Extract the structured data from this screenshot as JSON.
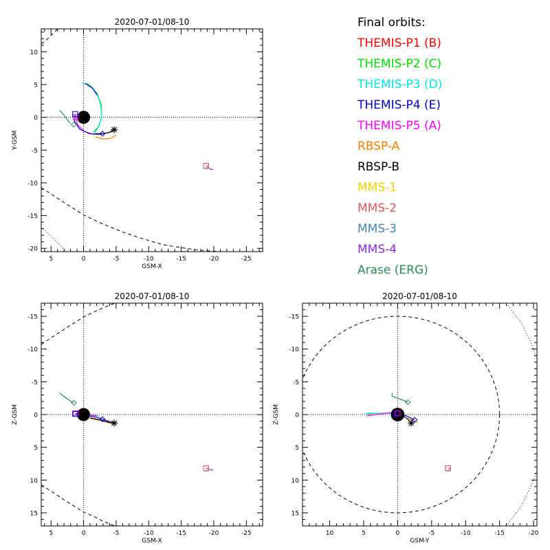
{
  "legend": {
    "title": "Final orbits:",
    "items": [
      {
        "label": "THEMIS-P1 (B)",
        "color": "#ff0000"
      },
      {
        "label": "THEMIS-P2 (C)",
        "color": "#00dd00"
      },
      {
        "label": "THEMIS-P3 (D)",
        "color": "#00e5e5"
      },
      {
        "label": "THEMIS-P4 (E)",
        "color": "#0000cc"
      },
      {
        "label": "THEMIS-P5 (A)",
        "color": "#ff00ff"
      },
      {
        "label": "RBSP-A",
        "color": "#ff8000"
      },
      {
        "label": "RBSP-B",
        "color": "#000000"
      },
      {
        "label": "MMS-1",
        "color": "#ffd000"
      },
      {
        "label": "MMS-2",
        "color": "#e05a5a"
      },
      {
        "label": "MMS-3",
        "color": "#4682b4"
      },
      {
        "label": "MMS-4",
        "color": "#8a2be2"
      },
      {
        "label": "Arase (ERG)",
        "color": "#2e8b57"
      }
    ]
  },
  "chart_data": [
    {
      "type": "line",
      "title": "2020-07-01/08-10",
      "xlabel": "GSM-X",
      "ylabel": "Y-GSM",
      "xlim": [
        6.5,
        -27.5
      ],
      "ylim": [
        13.5,
        -20.5
      ],
      "xticks": [
        5,
        0,
        -5,
        -10,
        -15,
        -20,
        -25
      ],
      "yticks": [
        -20,
        -15,
        -10,
        -5,
        0,
        5,
        10
      ],
      "grid": "zero-lines",
      "earth": {
        "x": 0,
        "y": 0,
        "r": 1
      },
      "boundaries": [
        {
          "style": "dashed",
          "points": [
            [
              6.5,
              -10.7
            ],
            [
              5,
              -11.7
            ],
            [
              3,
              -13.0
            ],
            [
              0,
              -14.9
            ],
            [
              -3,
              -16.3
            ],
            [
              -6,
              -17.5
            ],
            [
              -9,
              -18.5
            ],
            [
              -12,
              -19.4
            ],
            [
              -15,
              -19.9
            ],
            [
              -18,
              -20.3
            ],
            [
              -21,
              -20.5
            ]
          ]
        },
        {
          "style": "dashed",
          "points": [
            [
              6.5,
              11.2
            ],
            [
              5.5,
              12.0
            ],
            [
              4.5,
              13.0
            ],
            [
              4.0,
              13.5
            ]
          ]
        },
        {
          "style": "dotted",
          "points": [
            [
              6.5,
              -16.7
            ],
            [
              4.5,
              -18.6
            ],
            [
              2.6,
              -20.5
            ]
          ]
        }
      ],
      "series": [
        {
          "color": "#00dd00",
          "points": [
            [
              -1.5,
              -2.3
            ],
            [
              -2.3,
              -1.4
            ],
            [
              -2.8,
              0.2
            ],
            [
              -2.7,
              2.0
            ],
            [
              -2.1,
              3.6
            ],
            [
              -1.2,
              4.7
            ],
            [
              -0.5,
              5.2
            ]
          ]
        },
        {
          "color": "#00e5e5",
          "points": [
            [
              -1.7,
              -2.4
            ],
            [
              -2.4,
              -1.3
            ],
            [
              -2.8,
              0.3
            ],
            [
              -2.6,
              2.0
            ],
            [
              -2.1,
              3.5
            ],
            [
              -1.3,
              4.6
            ],
            [
              -0.3,
              5.1
            ],
            [
              0.3,
              5.3
            ]
          ]
        },
        {
          "color": "#ff00ff",
          "points": [
            [
              1.2,
              0
            ],
            [
              0.9,
              -1.2
            ],
            [
              -0.2,
              -2.2
            ],
            [
              -1.6,
              -2.6
            ],
            [
              -2.6,
              -2.5
            ]
          ]
        },
        {
          "color": "#0000cc",
          "points": [
            [
              1.3,
              0.5
            ],
            [
              1.4,
              -0.6
            ],
            [
              0.6,
              -1.8
            ],
            [
              -0.9,
              -2.5
            ],
            [
              -2.5,
              -2.6
            ],
            [
              -3.9,
              -2.3
            ],
            [
              -4.8,
              -1.9
            ]
          ]
        },
        {
          "color": "#0000cc",
          "points": [
            [
              -2.1,
              3.4
            ],
            [
              -1.3,
              4.5
            ],
            [
              -0.2,
              5.2
            ]
          ]
        },
        {
          "color": "#ff8000",
          "points": [
            [
              -1.8,
              -3.0
            ],
            [
              -3.0,
              -3.3
            ],
            [
              -4.2,
              -3.2
            ],
            [
              -5.0,
              -2.7
            ]
          ]
        },
        {
          "color": "#000000",
          "points": [
            [
              -1.8,
              -2.5
            ],
            [
              -3.0,
              -2.5
            ],
            [
              -4.0,
              -2.3
            ],
            [
              -4.7,
              -1.9
            ]
          ]
        },
        {
          "color": "#2e8b57",
          "points": [
            [
              2.0,
              -1.0
            ],
            [
              2.9,
              0.2
            ],
            [
              3.7,
              1.1
            ]
          ]
        },
        {
          "color": "#8a2be2",
          "points": [
            [
              -18.8,
              -7.4
            ],
            [
              -19.5,
              -7.9
            ],
            [
              -19.9,
              -8.0
            ]
          ]
        },
        {
          "color": "#e05a5a",
          "points": [
            [
              -18.9,
              -7.5
            ],
            [
              -19.4,
              -7.8
            ]
          ]
        }
      ],
      "markers": [
        {
          "kind": "square",
          "color": "#ff00ff",
          "x": 1.2,
          "y": 0
        },
        {
          "kind": "square",
          "color": "#0000cc",
          "x": 1.3,
          "y": 0.5
        },
        {
          "kind": "diamond",
          "color": "#0000cc",
          "x": -2.9,
          "y": -2.5
        },
        {
          "kind": "star",
          "color": "#000000",
          "x": -4.7,
          "y": -1.9
        },
        {
          "kind": "diamond",
          "color": "#2e8b57",
          "x": 1.5,
          "y": -1.1
        },
        {
          "kind": "square",
          "color": "#8a2be2",
          "x": -18.8,
          "y": -7.4
        },
        {
          "kind": "square",
          "color": "#4682b4",
          "x": -18.8,
          "y": -7.4
        },
        {
          "kind": "square",
          "color": "#e05a5a",
          "x": -18.8,
          "y": -7.4
        }
      ]
    },
    {
      "type": "line",
      "title": "2020-07-01/08-10",
      "xlabel": "GSM-X",
      "ylabel": "Z-GSM",
      "xlim": [
        6.5,
        -27.5
      ],
      "ylim": [
        -17,
        17
      ],
      "xticks": [
        5,
        0,
        -5,
        -10,
        -15,
        -20,
        -25
      ],
      "yticks": [
        -15,
        -10,
        -5,
        0,
        5,
        10,
        15
      ],
      "grid": "zero-lines",
      "earth": {
        "x": 0,
        "y": 0,
        "r": 1
      },
      "boundaries": [
        {
          "style": "dashed",
          "points": [
            [
              6.5,
              10.7
            ],
            [
              5,
              11.7
            ],
            [
              3,
              13.0
            ],
            [
              0,
              14.9
            ],
            [
              -1.5,
              15.5
            ],
            [
              -3,
              16.3
            ],
            [
              -4.8,
              17.0
            ]
          ]
        },
        {
          "style": "dashed",
          "points": [
            [
              6.5,
              -10.7
            ],
            [
              5,
              -11.7
            ],
            [
              3,
              -13.0
            ],
            [
              0,
              -14.9
            ],
            [
              -3,
              -16.3
            ],
            [
              -4.8,
              -17.0
            ]
          ]
        }
      ],
      "series": [
        {
          "color": "#00dd00",
          "points": [
            [
              1.2,
              -0.2
            ],
            [
              -0.5,
              0
            ],
            [
              -2.0,
              0.2
            ]
          ]
        },
        {
          "color": "#00e5e5",
          "points": [
            [
              1.2,
              -0.2
            ],
            [
              -0.5,
              0
            ],
            [
              -2.3,
              0.2
            ]
          ]
        },
        {
          "color": "#ff00ff",
          "points": [
            [
              1.2,
              -0.2
            ],
            [
              -0.5,
              0
            ],
            [
              -2.0,
              0.2
            ]
          ]
        },
        {
          "color": "#0000cc",
          "points": [
            [
              1.3,
              -0.1
            ],
            [
              0,
              0.1
            ],
            [
              -2.0,
              0.4
            ],
            [
              -3.5,
              0.9
            ],
            [
              -4.7,
              1.3
            ]
          ]
        },
        {
          "color": "#ff8000",
          "points": [
            [
              -1.0,
              0.6
            ],
            [
              -2.5,
              0.9
            ],
            [
              -4.0,
              1.3
            ],
            [
              -5.0,
              1.5
            ]
          ]
        },
        {
          "color": "#000000",
          "points": [
            [
              -1.0,
              0.5
            ],
            [
              -2.5,
              0.8
            ],
            [
              -4.0,
              1.2
            ],
            [
              -4.7,
              1.3
            ]
          ]
        },
        {
          "color": "#2e8b57",
          "points": [
            [
              1.6,
              -1.8
            ],
            [
              2.8,
              -2.6
            ],
            [
              3.7,
              -3.3
            ]
          ]
        },
        {
          "color": "#8a2be2",
          "points": [
            [
              -18.8,
              8.2
            ],
            [
              -19.5,
              8.4
            ],
            [
              -19.9,
              8.5
            ]
          ]
        },
        {
          "color": "#e05a5a",
          "points": [
            [
              -18.9,
              8.2
            ],
            [
              -19.4,
              8.4
            ]
          ]
        }
      ],
      "markers": [
        {
          "kind": "square",
          "color": "#ff00ff",
          "x": 1.2,
          "y": -0.2
        },
        {
          "kind": "square",
          "color": "#0000cc",
          "x": 1.3,
          "y": -0.1
        },
        {
          "kind": "diamond",
          "color": "#0000cc",
          "x": -2.9,
          "y": 0.7
        },
        {
          "kind": "star",
          "color": "#000000",
          "x": -4.7,
          "y": 1.3
        },
        {
          "kind": "diamond",
          "color": "#2e8b57",
          "x": 1.5,
          "y": -1.8
        },
        {
          "kind": "square",
          "color": "#8a2be2",
          "x": -18.8,
          "y": 8.2
        },
        {
          "kind": "square",
          "color": "#4682b4",
          "x": -18.8,
          "y": 8.2
        },
        {
          "kind": "square",
          "color": "#e05a5a",
          "x": -18.8,
          "y": 8.2
        }
      ]
    },
    {
      "type": "line",
      "title": "2020-07-01/08-10",
      "xlabel": "GSM-Y",
      "ylabel": "Z-GSM",
      "xlim": [
        14,
        -20.5
      ],
      "ylim": [
        -17,
        17
      ],
      "xticks": [
        10,
        5,
        0,
        -5,
        -10,
        -15,
        -20
      ],
      "yticks": [
        -15,
        -10,
        -5,
        0,
        5,
        10,
        15
      ],
      "grid": "zero-lines",
      "earth": {
        "x": 0,
        "y": 0,
        "r": 1
      },
      "boundaries": [
        {
          "style": "dashed-circle",
          "cx": 0,
          "cy": 0,
          "r": 15
        }
      ],
      "arcs": [
        {
          "style": "dotted",
          "points": [
            [
              -16.0,
              17.0
            ],
            [
              -18.2,
              14.0
            ],
            [
              -19.8,
              10.5
            ],
            [
              -20.5,
              8.5
            ]
          ]
        },
        {
          "style": "dotted",
          "points": [
            [
              -16.0,
              -17.0
            ],
            [
              -18.2,
              -14.0
            ],
            [
              -19.8,
              -10.5
            ],
            [
              -20.5,
              -8.5
            ]
          ]
        }
      ],
      "series": [
        {
          "color": "#00dd00",
          "points": [
            [
              4.5,
              -0.2
            ],
            [
              2.5,
              -0.2
            ],
            [
              0.8,
              -0.3
            ]
          ]
        },
        {
          "color": "#00e5e5",
          "points": [
            [
              4.7,
              -0.1
            ],
            [
              2.5,
              -0.2
            ],
            [
              0.8,
              -0.2
            ]
          ]
        },
        {
          "color": "#ff00ff",
          "points": [
            [
              4.5,
              0.2
            ],
            [
              2.5,
              -0.1
            ],
            [
              1.0,
              -0.3
            ],
            [
              0,
              -0.3
            ]
          ]
        },
        {
          "color": "#0000cc",
          "points": [
            [
              0.5,
              -0.3
            ],
            [
              -0.5,
              -0.1
            ],
            [
              -1.5,
              0.3
            ],
            [
              -2.5,
              0.8
            ]
          ]
        },
        {
          "color": "#ff8000",
          "points": [
            [
              -1.5,
              0.5
            ],
            [
              -2.3,
              1.0
            ],
            [
              -3.0,
              1.2
            ]
          ]
        },
        {
          "color": "#000000",
          "points": [
            [
              -0.8,
              0.2
            ],
            [
              -1.5,
              0.7
            ],
            [
              -2.0,
              1.3
            ]
          ]
        },
        {
          "color": "#2e8b57",
          "points": [
            [
              0.8,
              -3.3
            ],
            [
              0.8,
              -2.8
            ],
            [
              -0.8,
              -2.2
            ],
            [
              -1.5,
              -1.9
            ]
          ]
        },
        {
          "color": "#8a2be2",
          "points": [
            [
              -7.4,
              8.2
            ],
            [
              -7.8,
              8.4
            ]
          ]
        },
        {
          "color": "#e05a5a",
          "points": [
            [
              -7.4,
              8.2
            ],
            [
              -7.7,
              8.3
            ]
          ]
        }
      ],
      "markers": [
        {
          "kind": "square",
          "color": "#ff00ff",
          "x": 0,
          "y": -0.2
        },
        {
          "kind": "square",
          "color": "#0000cc",
          "x": 0.3,
          "y": -0.1
        },
        {
          "kind": "diamond",
          "color": "#0000cc",
          "x": -2.5,
          "y": 0.8
        },
        {
          "kind": "star",
          "color": "#000000",
          "x": -2.0,
          "y": 1.3
        },
        {
          "kind": "diamond",
          "color": "#2e8b57",
          "x": -1.5,
          "y": -1.9
        },
        {
          "kind": "square",
          "color": "#8a2be2",
          "x": -7.4,
          "y": 8.2
        },
        {
          "kind": "square",
          "color": "#4682b4",
          "x": -7.4,
          "y": 8.2
        },
        {
          "kind": "square",
          "color": "#e05a5a",
          "x": -7.4,
          "y": 8.2
        }
      ]
    }
  ]
}
